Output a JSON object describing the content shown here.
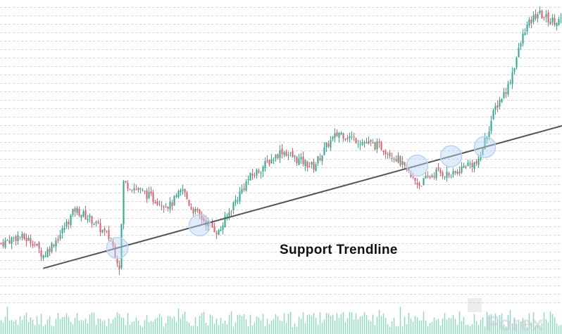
{
  "chart_data": {
    "type": "candlestick",
    "title": "",
    "annotation": "Support Trendline",
    "grid": true,
    "colors": {
      "up": "#2fae8f",
      "down": "#e3606a",
      "volume": "#7fd0ba",
      "trendline": "#555555",
      "touch": "#b9d4f3",
      "grid": "#bfbfbf"
    },
    "anchors": [
      [
        0,
        0.26
      ],
      [
        8,
        0.3
      ],
      [
        15,
        0.27
      ],
      [
        20,
        0.19
      ],
      [
        28,
        0.31
      ],
      [
        35,
        0.45
      ],
      [
        43,
        0.39
      ],
      [
        52,
        0.28
      ],
      [
        56,
        0.13
      ],
      [
        58,
        0.6
      ],
      [
        65,
        0.56
      ],
      [
        72,
        0.51
      ],
      [
        80,
        0.47
      ],
      [
        86,
        0.56
      ],
      [
        90,
        0.46
      ],
      [
        95,
        0.4
      ],
      [
        103,
        0.32
      ],
      [
        110,
        0.48
      ],
      [
        117,
        0.62
      ],
      [
        125,
        0.7
      ],
      [
        133,
        0.78
      ],
      [
        140,
        0.73
      ],
      [
        148,
        0.69
      ],
      [
        155,
        0.82
      ],
      [
        160,
        0.88
      ],
      [
        166,
        0.85
      ],
      [
        173,
        0.82
      ],
      [
        180,
        0.8
      ],
      [
        188,
        0.73
      ],
      [
        194,
        0.63
      ],
      [
        198,
        0.59
      ],
      [
        206,
        0.66
      ],
      [
        214,
        0.64
      ],
      [
        220,
        0.7
      ],
      [
        226,
        0.71
      ],
      [
        228,
        0.8
      ],
      [
        234,
        1.02
      ],
      [
        240,
        1.14
      ],
      [
        244,
        1.3
      ],
      [
        248,
        1.46
      ],
      [
        254,
        1.55
      ],
      [
        260,
        1.51
      ]
    ],
    "touch_points": [
      55,
      94,
      197,
      213,
      229
    ],
    "trendline": {
      "from": [
        20,
        0.12
      ],
      "to": [
        266,
        0.92
      ]
    },
    "ylim": [
      0,
      1.6
    ],
    "candle_count": 266
  },
  "watermark": "Forex"
}
